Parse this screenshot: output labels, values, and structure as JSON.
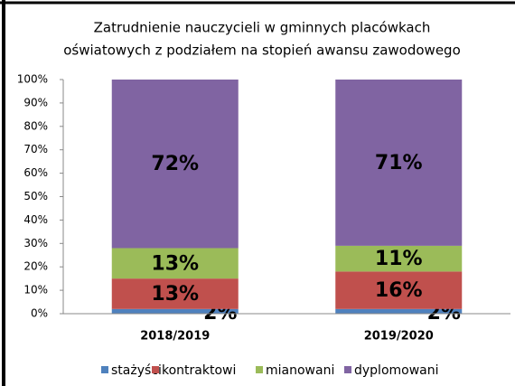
{
  "chart_data": {
    "type": "stacked_bar",
    "title": [
      "Zatrudnienie nauczycieli w gminnych placówkach",
      "oświatowych z podziałem na stopień awansu zawodowego"
    ],
    "categories": [
      "2018/2019",
      "2019/2020"
    ],
    "series": [
      {
        "name": "stażyści",
        "color": "#4f81bd",
        "values": [
          2,
          2
        ],
        "value_labels": [
          "2%",
          "2%"
        ]
      },
      {
        "name": "kontraktowi",
        "color": "#c0504d",
        "values": [
          13,
          16
        ],
        "value_labels": [
          "13%",
          "16%"
        ]
      },
      {
        "name": "mianowani",
        "color": "#9bbb59",
        "values": [
          13,
          11
        ],
        "value_labels": [
          "13%",
          "11%"
        ]
      },
      {
        "name": "dyplomowani",
        "color": "#8064a2",
        "values": [
          72,
          71
        ],
        "value_labels": [
          "72%",
          "71%"
        ]
      }
    ],
    "ylim": [
      0,
      100
    ],
    "yticks": [
      {
        "value": 0,
        "label": "0%"
      },
      {
        "value": 10,
        "label": "10%"
      },
      {
        "value": 20,
        "label": "20%"
      },
      {
        "value": 30,
        "label": "30%"
      },
      {
        "value": 40,
        "label": "40%"
      },
      {
        "value": 50,
        "label": "50%"
      },
      {
        "value": 60,
        "label": "60%"
      },
      {
        "value": 70,
        "label": "70%"
      },
      {
        "value": 80,
        "label": "80%"
      },
      {
        "value": 90,
        "label": "90%"
      },
      {
        "value": 100,
        "label": "100%"
      }
    ],
    "legend": "bottom"
  }
}
